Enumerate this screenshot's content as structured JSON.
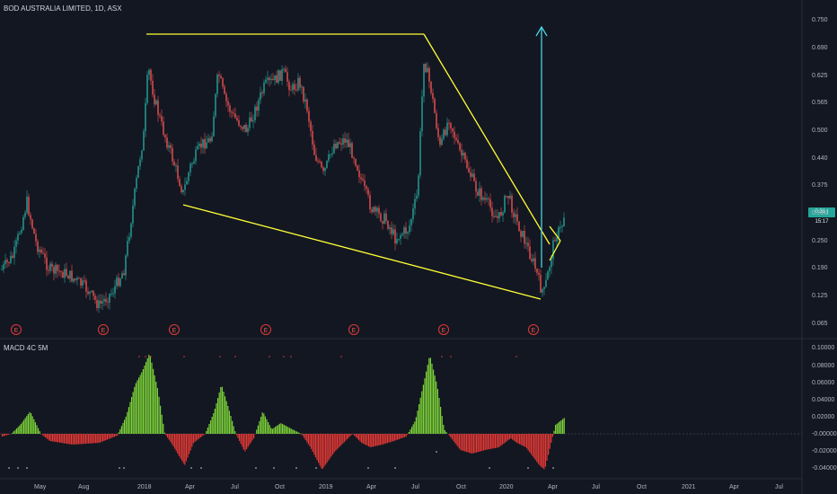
{
  "header": {
    "title": "BOD AUSTRALIA LIMITED, 1D, ASX"
  },
  "macd": {
    "title": "MACD 4C 5M"
  },
  "price_axis": [
    "0.750",
    "0.690",
    "0.625",
    "0.565",
    "0.500",
    "0.440",
    "0.375",
    "0.310",
    "0.250",
    "0.190",
    "0.125",
    "0.065"
  ],
  "current_price_tag": "0.31 | 15:17",
  "macd_axis": [
    "0.10000",
    "0.08000",
    "0.06000",
    "0.04000",
    "0.02000",
    "-0.00000",
    "-0.02000",
    "-0.04000"
  ],
  "time_axis": [
    "May",
    "Aug",
    "2018",
    "Apr",
    "Jul",
    "Oct",
    "2019",
    "Apr",
    "Jul",
    "Oct",
    "2020",
    "Apr",
    "Jul",
    "Oct",
    "2021",
    "Apr",
    "Jul"
  ],
  "earnings_marker": "E",
  "colors": {
    "background": "#131722",
    "candle_up": "#26a69a",
    "candle_down": "#ef5350",
    "trendline": "#ffff33",
    "arrow": "#4dd0e1",
    "macd_pos": "#7cd338",
    "macd_neg": "#e53935"
  }
}
